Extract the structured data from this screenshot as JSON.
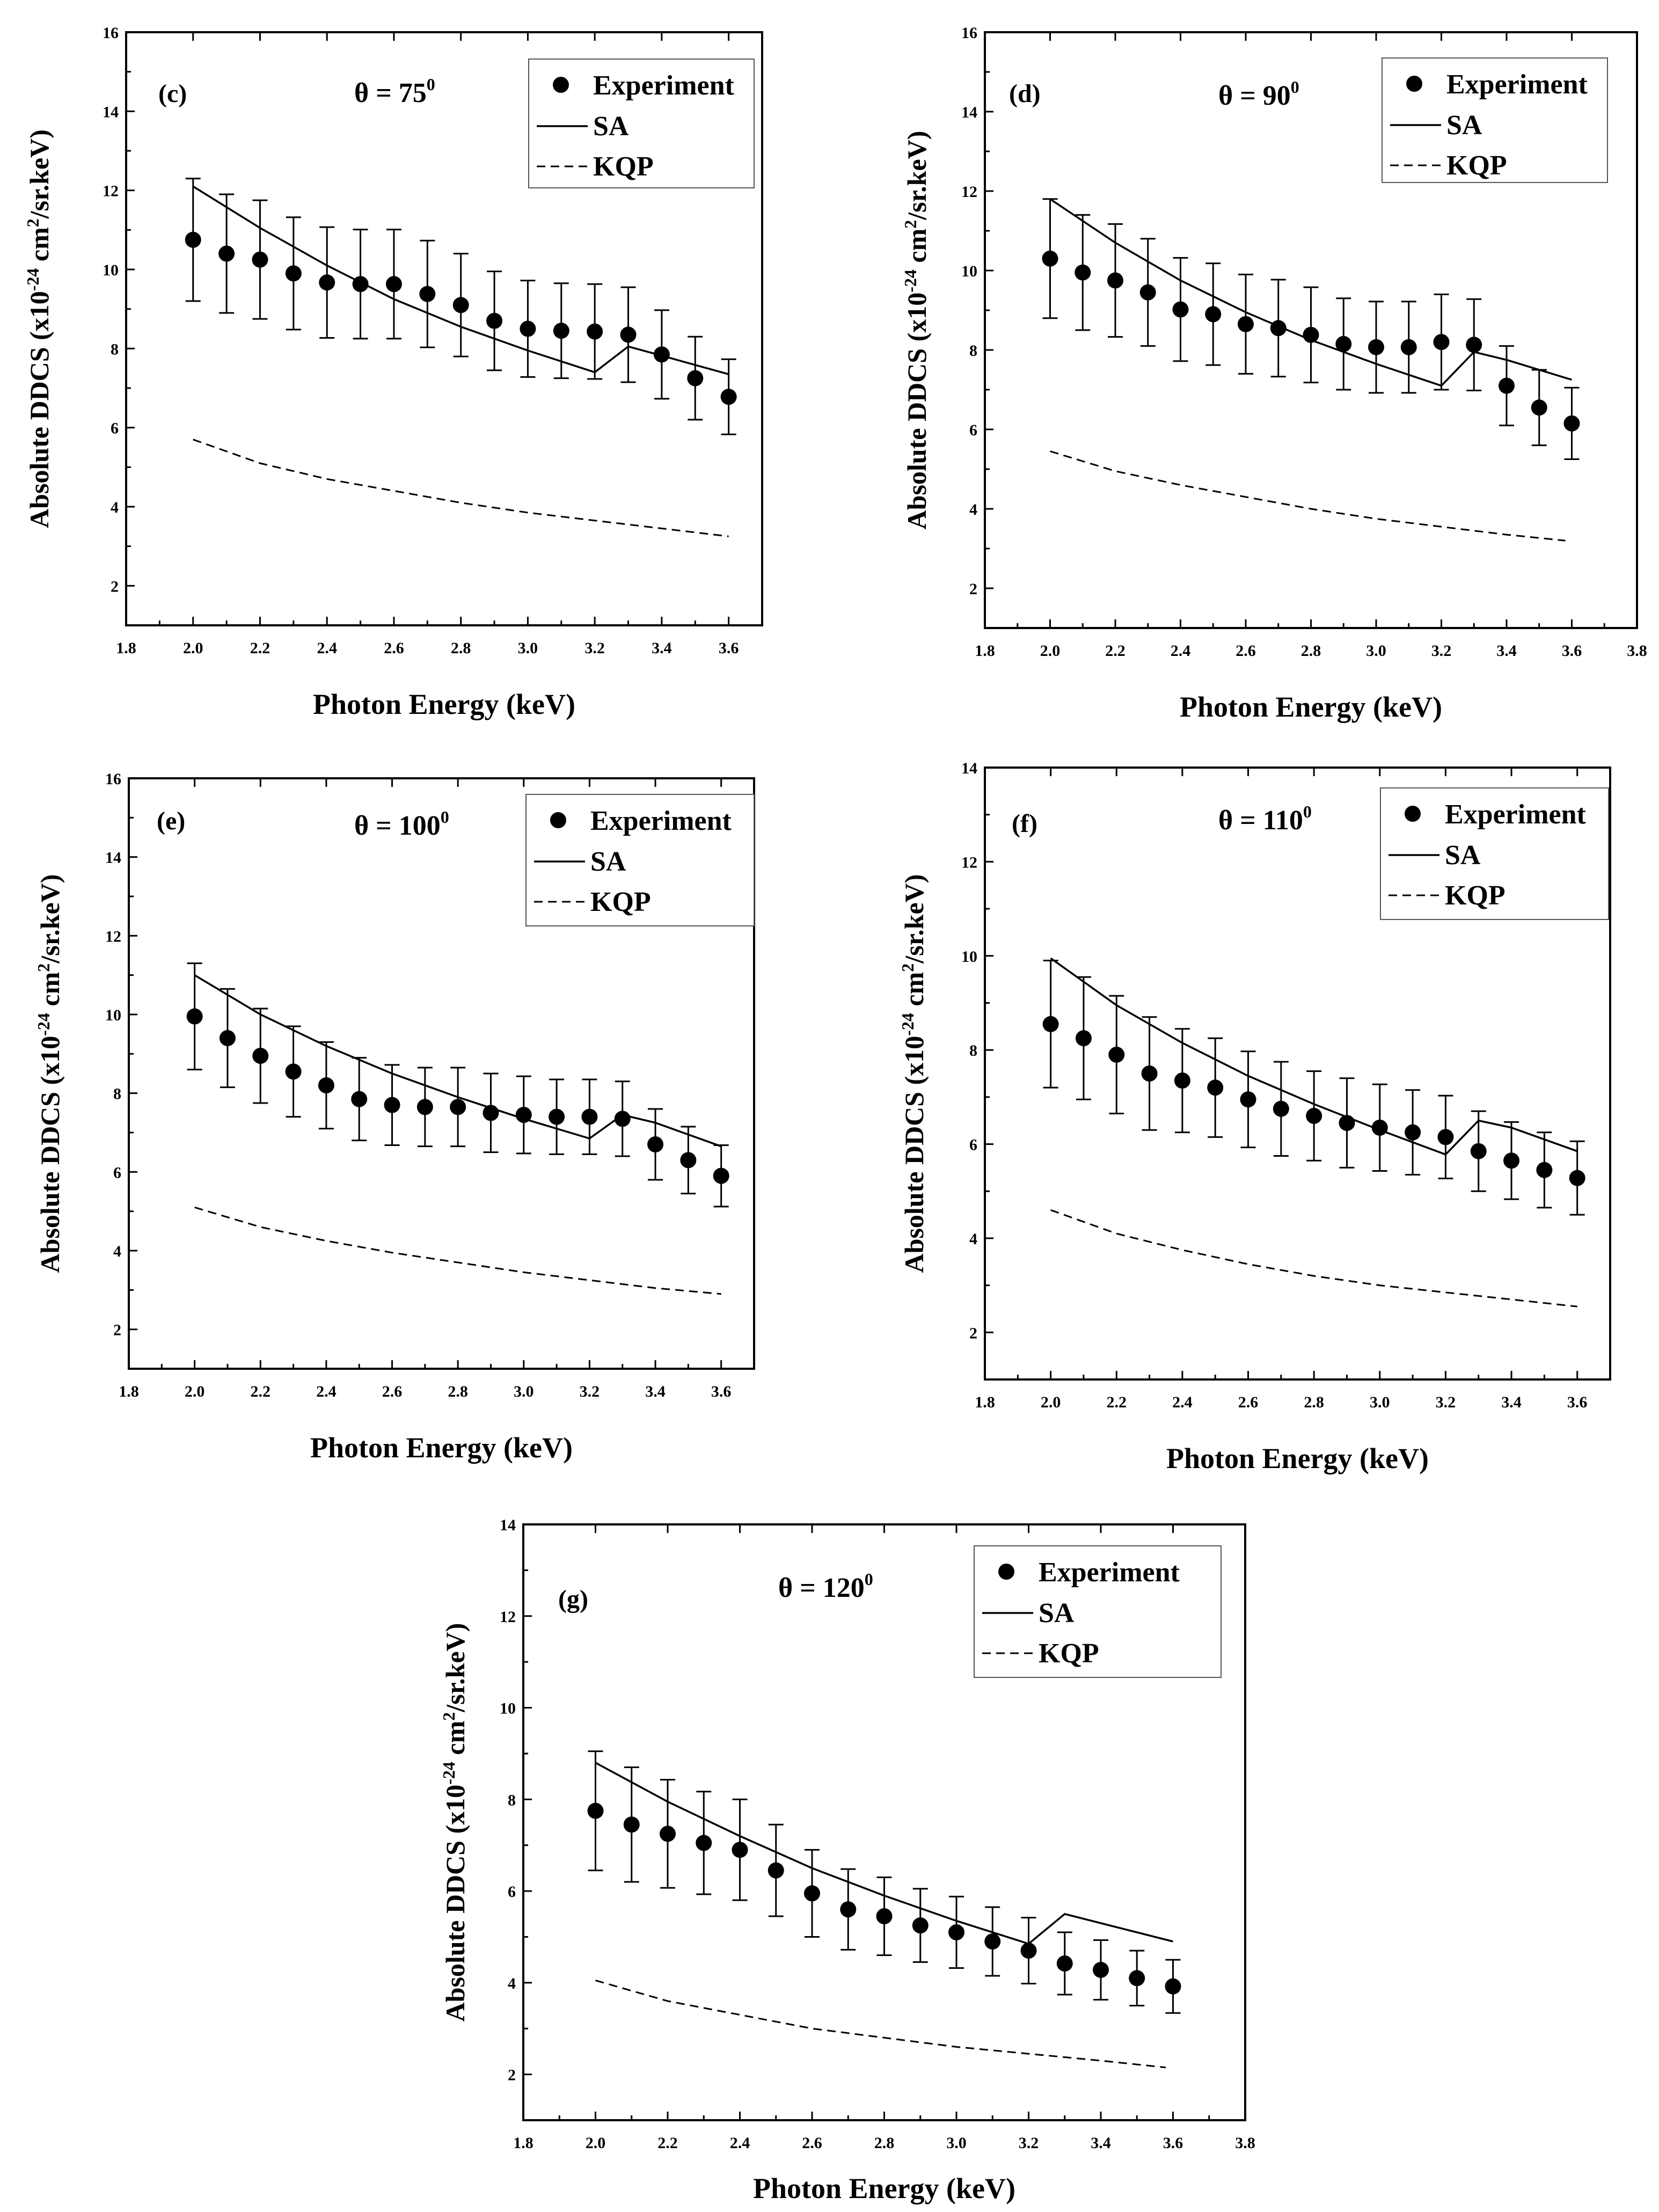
{
  "figure": {
    "y_label": {
      "main": "Absolute DDCS (x10",
      "exp": "-24",
      "mid": " cm",
      "exp2": "2",
      "end": "/sr.keV)"
    },
    "x_label": "Photon Energy (keV)",
    "legend": {
      "experiment": "Experiment",
      "sa": "SA",
      "kqp": "KQP"
    },
    "theta_prefix": "θ = ",
    "degree_sup": "0"
  },
  "chart_data": [
    {
      "type": "scatter",
      "panel": "(c)",
      "angle": "75",
      "xlim": [
        1.8,
        3.7
      ],
      "ylim": [
        1,
        16
      ],
      "xticks": [
        "1.8",
        "2.0",
        "2.2",
        "2.4",
        "2.6",
        "2.8",
        "3.0",
        "3.2",
        "3.4",
        "3.6"
      ],
      "yticks": [
        "2",
        "4",
        "6",
        "8",
        "10",
        "12",
        "14",
        "16"
      ],
      "series": [
        {
          "name": "Experiment",
          "x": [
            2.0,
            2.1,
            2.2,
            2.3,
            2.4,
            2.5,
            2.6,
            2.7,
            2.8,
            2.9,
            3.0,
            3.1,
            3.2,
            3.3,
            3.4,
            3.5,
            3.6
          ],
          "values": [
            10.75,
            10.4,
            10.25,
            9.9,
            9.67,
            9.63,
            9.63,
            9.38,
            9.1,
            8.7,
            8.5,
            8.45,
            8.43,
            8.35,
            7.85,
            7.25,
            6.78
          ],
          "error": [
            1.55,
            1.5,
            1.5,
            1.42,
            1.4,
            1.38,
            1.38,
            1.35,
            1.3,
            1.25,
            1.22,
            1.2,
            1.2,
            1.2,
            1.12,
            1.05,
            0.95
          ]
        },
        {
          "name": "SA",
          "x": [
            2.0,
            2.2,
            2.4,
            2.6,
            2.8,
            3.0,
            3.2,
            3.3,
            3.4,
            3.6
          ],
          "values": [
            12.1,
            11.05,
            10.1,
            9.25,
            8.55,
            7.95,
            7.4,
            8.05,
            7.82,
            7.35
          ]
        },
        {
          "name": "KQP",
          "x": [
            2.0,
            2.2,
            2.4,
            2.6,
            2.8,
            3.0,
            3.2,
            3.4,
            3.6
          ],
          "values": [
            5.7,
            5.1,
            4.7,
            4.4,
            4.1,
            3.85,
            3.65,
            3.45,
            3.25
          ]
        }
      ]
    },
    {
      "type": "scatter",
      "panel": "(d)",
      "angle": "90",
      "xlim": [
        1.8,
        3.8
      ],
      "ylim": [
        1,
        16
      ],
      "xticks": [
        "1.8",
        "2.0",
        "2.2",
        "2.4",
        "2.6",
        "2.8",
        "3.0",
        "3.2",
        "3.4",
        "3.6",
        "3.8"
      ],
      "yticks": [
        "2",
        "4",
        "6",
        "8",
        "10",
        "12",
        "14",
        "16"
      ],
      "series": [
        {
          "name": "Experiment",
          "x": [
            2.0,
            2.1,
            2.2,
            2.3,
            2.4,
            2.5,
            2.6,
            2.7,
            2.8,
            2.9,
            3.0,
            3.1,
            3.2,
            3.3,
            3.4,
            3.5,
            3.6
          ],
          "values": [
            10.3,
            9.95,
            9.75,
            9.45,
            9.02,
            8.9,
            8.65,
            8.55,
            8.38,
            8.15,
            8.07,
            8.07,
            8.2,
            8.13,
            7.1,
            6.55,
            6.15
          ],
          "error": [
            1.5,
            1.45,
            1.42,
            1.35,
            1.3,
            1.28,
            1.25,
            1.22,
            1.2,
            1.15,
            1.15,
            1.15,
            1.2,
            1.15,
            1.0,
            0.95,
            0.9
          ]
        },
        {
          "name": "SA",
          "x": [
            2.0,
            2.2,
            2.4,
            2.6,
            2.8,
            3.0,
            3.2,
            3.3,
            3.4,
            3.6
          ],
          "values": [
            11.8,
            10.7,
            9.75,
            8.95,
            8.25,
            7.65,
            7.1,
            7.95,
            7.75,
            7.25
          ]
        },
        {
          "name": "KQP",
          "x": [
            2.0,
            2.2,
            2.4,
            2.6,
            2.8,
            3.0,
            3.2,
            3.4,
            3.58
          ],
          "values": [
            5.45,
            4.95,
            4.6,
            4.3,
            4.0,
            3.75,
            3.55,
            3.35,
            3.2
          ]
        }
      ]
    },
    {
      "type": "scatter",
      "panel": "(e)",
      "angle": "100",
      "xlim": [
        1.8,
        3.7
      ],
      "ylim": [
        1,
        16
      ],
      "xticks": [
        "1.8",
        "2.0",
        "2.2",
        "2.4",
        "2.6",
        "2.8",
        "3.0",
        "3.2",
        "3.4",
        "3.6"
      ],
      "yticks": [
        "2",
        "4",
        "6",
        "8",
        "10",
        "12",
        "14",
        "16"
      ],
      "series": [
        {
          "name": "Experiment",
          "x": [
            2.0,
            2.1,
            2.2,
            2.3,
            2.4,
            2.5,
            2.6,
            2.7,
            2.8,
            2.9,
            3.0,
            3.1,
            3.2,
            3.3,
            3.4,
            3.5,
            3.6
          ],
          "values": [
            9.95,
            9.4,
            8.95,
            8.55,
            8.2,
            7.85,
            7.7,
            7.65,
            7.65,
            7.5,
            7.45,
            7.4,
            7.4,
            7.35,
            6.7,
            6.3,
            5.9
          ],
          "error": [
            1.35,
            1.25,
            1.2,
            1.15,
            1.1,
            1.05,
            1.02,
            1.0,
            1.0,
            1.0,
            0.98,
            0.95,
            0.95,
            0.95,
            0.9,
            0.85,
            0.78
          ]
        },
        {
          "name": "SA",
          "x": [
            2.0,
            2.2,
            2.4,
            2.6,
            2.8,
            3.0,
            3.2,
            3.3,
            3.4,
            3.6
          ],
          "values": [
            11.0,
            10.0,
            9.2,
            8.5,
            7.9,
            7.35,
            6.85,
            7.45,
            7.25,
            6.65
          ]
        },
        {
          "name": "KQP",
          "x": [
            2.0,
            2.2,
            2.4,
            2.6,
            2.8,
            3.0,
            3.2,
            3.4,
            3.6
          ],
          "values": [
            5.1,
            4.6,
            4.25,
            3.95,
            3.7,
            3.45,
            3.25,
            3.05,
            2.9
          ]
        }
      ]
    },
    {
      "type": "scatter",
      "panel": "(f)",
      "angle": "110",
      "xlim": [
        1.8,
        3.7
      ],
      "ylim": [
        1,
        14
      ],
      "xticks": [
        "1.8",
        "2.0",
        "2.2",
        "2.4",
        "2.6",
        "2.8",
        "3.0",
        "3.2",
        "3.4",
        "3.6"
      ],
      "yticks": [
        "2",
        "4",
        "6",
        "8",
        "10",
        "12",
        "14"
      ],
      "series": [
        {
          "name": "Experiment",
          "x": [
            2.0,
            2.1,
            2.2,
            2.3,
            2.4,
            2.5,
            2.6,
            2.7,
            2.8,
            2.9,
            3.0,
            3.1,
            3.2,
            3.3,
            3.4,
            3.5,
            3.6
          ],
          "values": [
            8.55,
            8.25,
            7.9,
            7.5,
            7.35,
            7.2,
            6.95,
            6.75,
            6.6,
            6.45,
            6.35,
            6.25,
            6.15,
            5.85,
            5.65,
            5.45,
            5.28
          ],
          "error": [
            1.35,
            1.3,
            1.25,
            1.2,
            1.1,
            1.05,
            1.02,
            1.0,
            0.95,
            0.95,
            0.92,
            0.9,
            0.88,
            0.85,
            0.82,
            0.8,
            0.78
          ]
        },
        {
          "name": "SA",
          "x": [
            2.0,
            2.2,
            2.4,
            2.6,
            2.8,
            3.0,
            3.2,
            3.3,
            3.4,
            3.6
          ],
          "values": [
            9.95,
            8.95,
            8.15,
            7.45,
            6.85,
            6.3,
            5.78,
            6.5,
            6.35,
            5.85
          ]
        },
        {
          "name": "KQP",
          "x": [
            2.0,
            2.2,
            2.4,
            2.6,
            2.8,
            3.0,
            3.2,
            3.4,
            3.6
          ],
          "values": [
            4.6,
            4.1,
            3.75,
            3.45,
            3.2,
            3.0,
            2.85,
            2.7,
            2.55
          ]
        }
      ]
    },
    {
      "type": "scatter",
      "panel": "(g)",
      "angle": "120",
      "xlim": [
        1.8,
        3.8
      ],
      "ylim": [
        1,
        14
      ],
      "xticks": [
        "1.8",
        "2.0",
        "2.2",
        "2.4",
        "2.6",
        "2.8",
        "3.0",
        "3.2",
        "3.4",
        "3.6",
        "3.8"
      ],
      "yticks": [
        "2",
        "4",
        "6",
        "8",
        "10",
        "12",
        "14"
      ],
      "series": [
        {
          "name": "Experiment",
          "x": [
            2.0,
            2.1,
            2.2,
            2.3,
            2.4,
            2.5,
            2.6,
            2.7,
            2.8,
            2.9,
            3.0,
            3.1,
            3.2,
            3.3,
            3.4,
            3.5,
            3.6
          ],
          "values": [
            7.75,
            7.45,
            7.25,
            7.05,
            6.9,
            6.45,
            5.95,
            5.6,
            5.45,
            5.25,
            5.1,
            4.9,
            4.7,
            4.42,
            4.28,
            4.1,
            3.92
          ],
          "error": [
            1.3,
            1.25,
            1.18,
            1.12,
            1.1,
            1.0,
            0.95,
            0.88,
            0.85,
            0.8,
            0.78,
            0.75,
            0.72,
            0.68,
            0.65,
            0.6,
            0.58
          ]
        },
        {
          "name": "SA",
          "x": [
            2.0,
            2.2,
            2.4,
            2.6,
            2.8,
            3.0,
            3.2,
            3.3,
            3.6
          ],
          "values": [
            8.8,
            7.95,
            7.2,
            6.5,
            5.9,
            5.35,
            4.85,
            5.5,
            4.9
          ]
        },
        {
          "name": "KQP",
          "x": [
            2.0,
            2.2,
            2.4,
            2.6,
            2.8,
            3.0,
            3.2,
            3.4,
            3.58
          ],
          "values": [
            4.05,
            3.6,
            3.3,
            3.0,
            2.8,
            2.6,
            2.45,
            2.3,
            2.15
          ]
        }
      ]
    }
  ]
}
